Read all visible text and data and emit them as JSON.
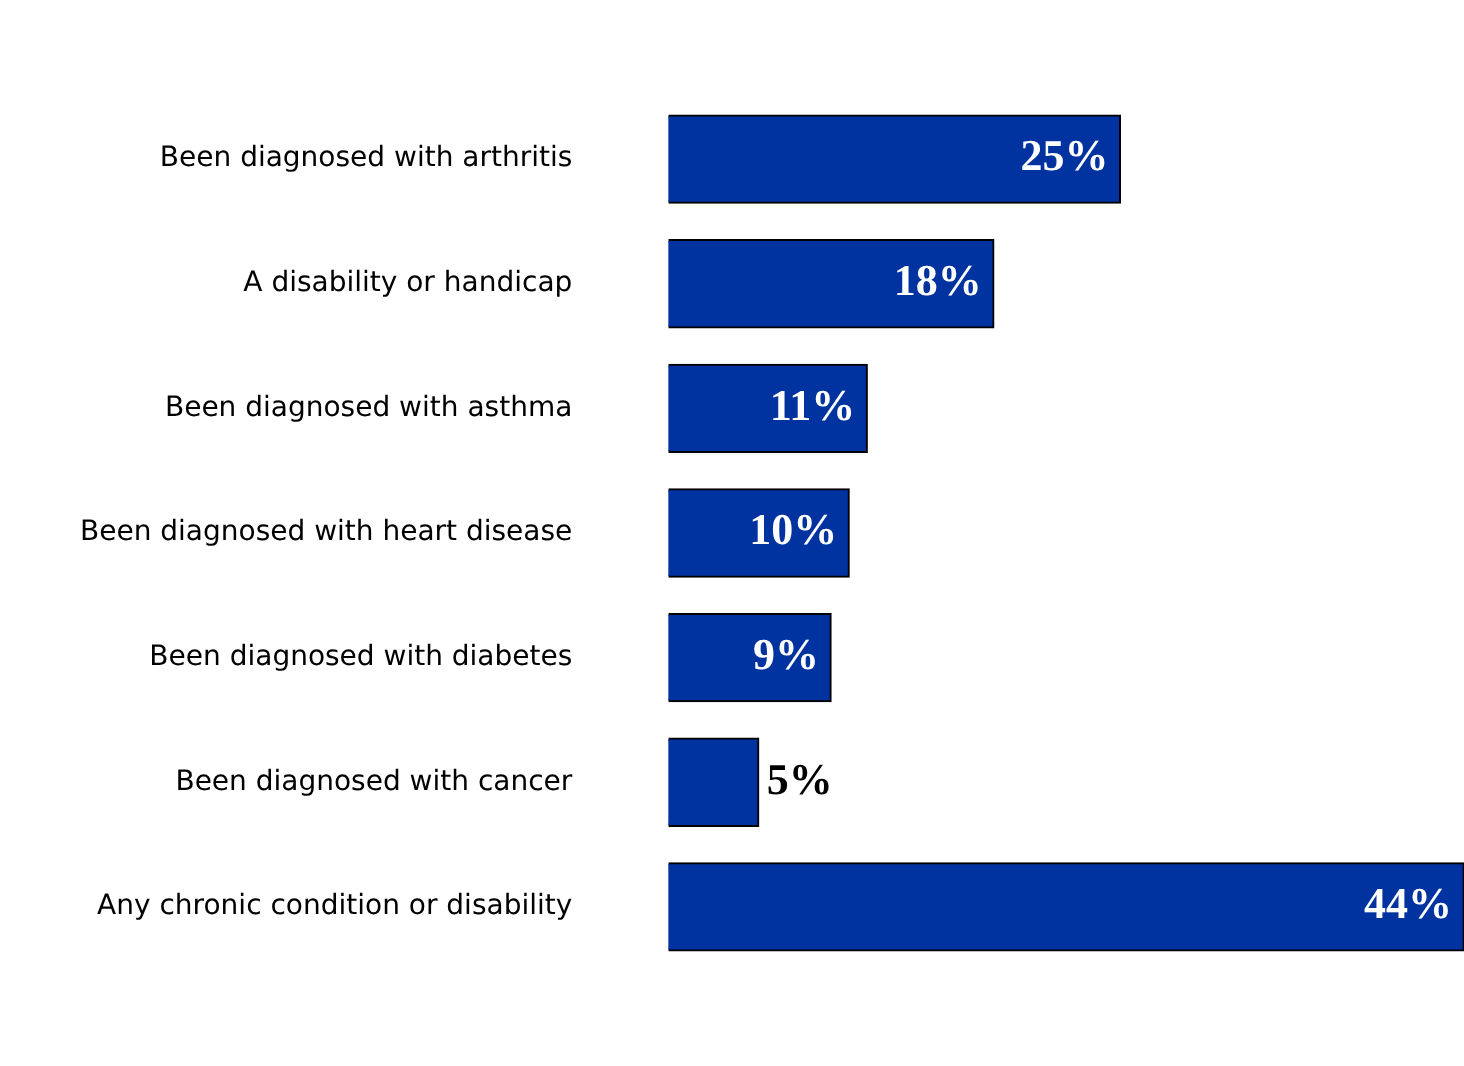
{
  "chart_data": {
    "type": "bar",
    "orientation": "horizontal",
    "categories": [
      "Been diagnosed with arthritis",
      "A disability or handicap",
      "Been diagnosed with asthma",
      "Been diagnosed with heart disease",
      "Been diagnosed with diabetes",
      "Been diagnosed with cancer",
      "Any chronic condition or disability"
    ],
    "values": [
      25,
      18,
      11,
      10,
      9,
      5,
      44
    ],
    "value_labels": [
      "25%",
      "18%",
      "11%",
      "10%",
      "9%",
      "5%",
      "44%"
    ],
    "color": "#0033a0",
    "xlim": [
      0,
      44
    ]
  }
}
